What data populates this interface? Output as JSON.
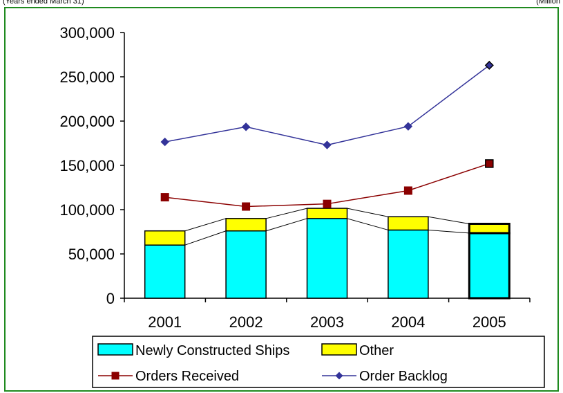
{
  "header": {
    "left_note": "(Years ended March 31)",
    "right_note": "(Million"
  },
  "colors": {
    "frame": "#1f8a1f",
    "newly_constructed": "#00ffff",
    "other": "#ffff00",
    "orders_received": "#8b0000",
    "order_backlog": "#333399"
  },
  "chart_data": {
    "type": "bar",
    "categories": [
      "2001",
      "2002",
      "2003",
      "2004",
      "2005"
    ],
    "ylim": [
      0,
      300000
    ],
    "y_ticks": [
      0,
      50000,
      100000,
      150000,
      200000,
      250000,
      300000
    ],
    "y_tick_labels": [
      "0",
      "50,000",
      "100,000",
      "150,000",
      "200,000",
      "250,000",
      "300,000"
    ],
    "stacked_series": [
      {
        "name": "Newly Constructed Ships",
        "values": [
          60000,
          76000,
          90000,
          77000,
          73500
        ]
      },
      {
        "name": "Other",
        "values": [
          16000,
          14000,
          11500,
          15000,
          10500
        ]
      }
    ],
    "line_series": [
      {
        "name": "Orders Received",
        "marker": "square",
        "values": [
          114000,
          103500,
          106500,
          121500,
          152000
        ]
      },
      {
        "name": "Order Backlog",
        "marker": "diamond",
        "values": [
          176500,
          193500,
          173000,
          194000,
          263000
        ]
      }
    ],
    "legend": {
      "placement": "bottom",
      "labels": [
        "Newly Constructed Ships",
        "Other",
        "Orders Received",
        "Order Backlog"
      ]
    }
  }
}
